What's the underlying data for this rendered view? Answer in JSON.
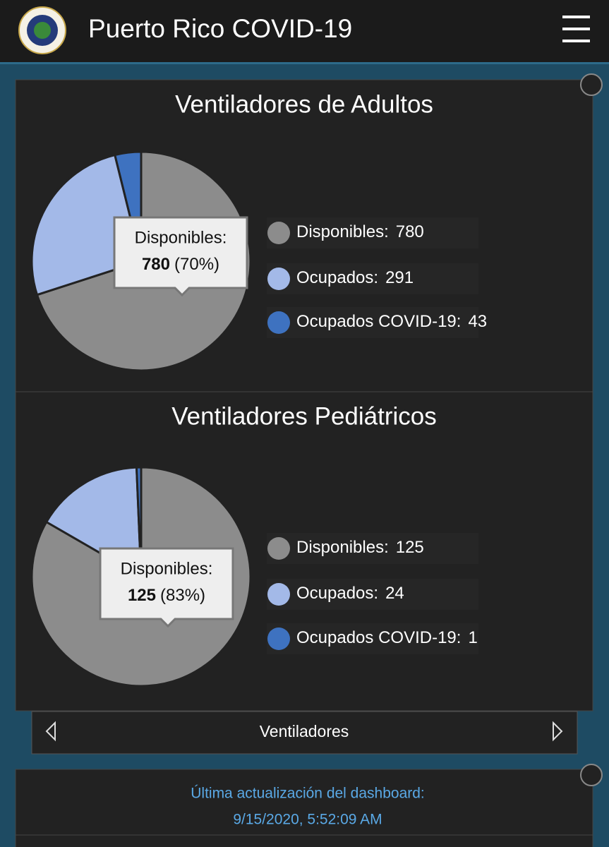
{
  "header": {
    "title": "Puerto Rico COVID-19"
  },
  "chart_data": [
    {
      "type": "pie",
      "title": "Ventiladores de Adultos",
      "categories": [
        "Disponibles:",
        "Ocupados:",
        "Ocupados COVID-19:"
      ],
      "values": [
        780,
        291,
        43
      ],
      "colors": [
        "#8c8c8c",
        "#a3b9e8",
        "#3e72c0"
      ],
      "tooltip_percent_label": "(70%)"
    },
    {
      "type": "pie",
      "title": "Ventiladores Pediátricos",
      "categories": [
        "Disponibles:",
        "Ocupados:",
        "Ocupados COVID-19:"
      ],
      "values": [
        125,
        24,
        1
      ],
      "colors": [
        "#8c8c8c",
        "#a3b9e8",
        "#3e72c0"
      ],
      "tooltip_percent_label": "(83%)"
    }
  ],
  "navigation": {
    "label": "Ventiladores"
  },
  "footer": {
    "label": "Última actualización del dashboard:",
    "timestamp": "9/15/2020, 5:52:09 AM"
  }
}
